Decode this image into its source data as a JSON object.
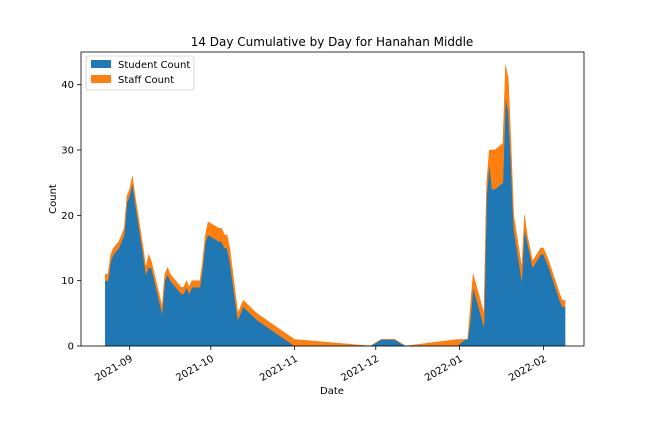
{
  "chart_data": {
    "type": "area",
    "stacked": true,
    "title": "14 Day Cumulative by Day for Hanahan Middle",
    "xlabel": "Date",
    "ylabel": "Count",
    "xlim": [
      "2021-08-14",
      "2022-02-16"
    ],
    "ylim": [
      0,
      45
    ],
    "x_ticks": [
      {
        "date": "2021-09-01",
        "label": "2021-09"
      },
      {
        "date": "2021-10-01",
        "label": "2021-10"
      },
      {
        "date": "2021-11-01",
        "label": "2021-11"
      },
      {
        "date": "2021-12-01",
        "label": "2021-12"
      },
      {
        "date": "2022-01-01",
        "label": "2022-01"
      },
      {
        "date": "2022-02-01",
        "label": "2022-02"
      }
    ],
    "y_ticks": [
      0,
      10,
      20,
      30,
      40
    ],
    "legend_position": "upper left",
    "grid": false,
    "x": [
      "2021-08-23",
      "2021-08-24",
      "2021-08-25",
      "2021-08-26",
      "2021-08-28",
      "2021-08-30",
      "2021-08-31",
      "2021-09-01",
      "2021-09-02",
      "2021-09-03",
      "2021-09-06",
      "2021-09-07",
      "2021-09-08",
      "2021-09-09",
      "2021-09-13",
      "2021-09-14",
      "2021-09-15",
      "2021-09-16",
      "2021-09-20",
      "2021-09-21",
      "2021-09-22",
      "2021-09-23",
      "2021-09-24",
      "2021-09-27",
      "2021-09-28",
      "2021-09-29",
      "2021-09-30",
      "2021-10-04",
      "2021-10-05",
      "2021-10-06",
      "2021-10-07",
      "2021-10-08",
      "2021-10-11",
      "2021-10-12",
      "2021-10-13",
      "2021-10-18",
      "2021-10-25",
      "2021-11-01",
      "2021-11-29",
      "2021-12-03",
      "2021-12-08",
      "2021-12-12",
      "2021-12-31",
      "2022-01-03",
      "2022-01-04",
      "2022-01-05",
      "2022-01-06",
      "2022-01-10",
      "2022-01-11",
      "2022-01-12",
      "2022-01-13",
      "2022-01-14",
      "2022-01-17",
      "2022-01-18",
      "2022-01-19",
      "2022-01-20",
      "2022-01-21",
      "2022-01-24",
      "2022-01-25",
      "2022-01-26",
      "2022-01-27",
      "2022-01-28",
      "2022-01-31",
      "2022-02-01",
      "2022-02-02",
      "2022-02-03",
      "2022-02-07",
      "2022-02-08",
      "2022-02-09"
    ],
    "series": [
      {
        "name": "Student Count",
        "color": "#1f77b4",
        "values": [
          10,
          10,
          13,
          14,
          15,
          17,
          22,
          23,
          25,
          22,
          14,
          11,
          12,
          12,
          5,
          10,
          11,
          10,
          8,
          8,
          9,
          8,
          9,
          9,
          12,
          16,
          17,
          16,
          16,
          15,
          15,
          13,
          4,
          5,
          6,
          4,
          2,
          0,
          0,
          1,
          1,
          0,
          0,
          1,
          1,
          4,
          9,
          3,
          23,
          28,
          24,
          24,
          25,
          38,
          36,
          28,
          18,
          10,
          18,
          16,
          14,
          12,
          14,
          14,
          13,
          12,
          7,
          6,
          6
        ]
      },
      {
        "name": "Staff Count",
        "color": "#ff7f0e",
        "values": [
          1,
          1,
          1,
          1,
          1,
          1,
          1,
          1,
          1,
          1,
          1,
          1,
          2,
          1,
          1,
          1,
          1,
          1,
          1,
          1,
          1,
          1,
          1,
          1,
          1,
          1,
          2,
          2,
          2,
          2,
          2,
          2,
          1,
          1,
          1,
          1,
          1,
          1,
          0,
          0,
          0,
          0,
          1,
          0,
          0,
          2,
          2,
          2,
          2,
          2,
          6,
          6,
          6,
          5,
          5,
          3,
          2,
          2,
          2,
          1,
          1,
          1,
          1,
          1,
          1,
          1,
          1,
          1,
          1
        ]
      }
    ]
  }
}
